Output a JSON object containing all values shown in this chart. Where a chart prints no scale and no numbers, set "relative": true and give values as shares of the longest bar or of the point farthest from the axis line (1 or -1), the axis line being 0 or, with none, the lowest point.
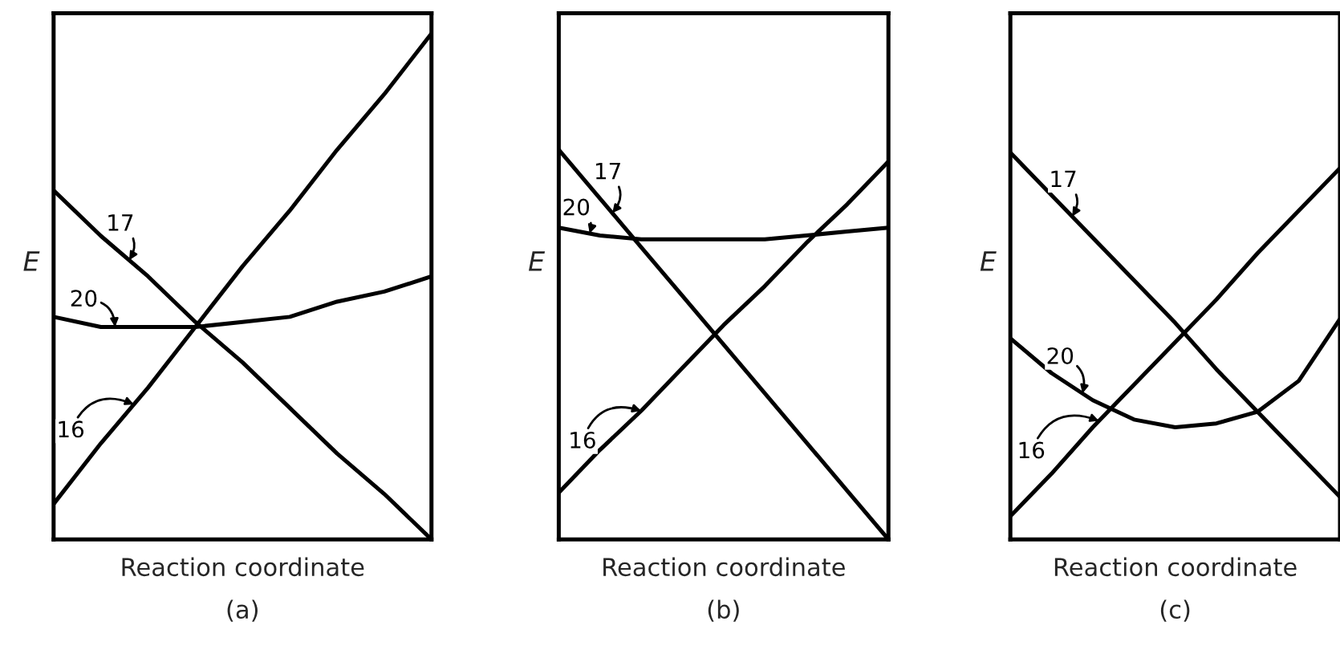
{
  "chart_data": [
    {
      "type": "line",
      "title": "(a)",
      "xlabel": "Reaction coordinate",
      "ylabel": "E",
      "relative": true,
      "categories": [
        null,
        null,
        null,
        null,
        null,
        null,
        null,
        null,
        null
      ],
      "series": [
        {
          "name": "17",
          "color": "#000000",
          "values": [
            0.69,
            0.6,
            0.52,
            0.43,
            0.35,
            0.26,
            0.17,
            0.09,
            0.0
          ]
        },
        {
          "name": "20",
          "color": "#000000",
          "values": [
            0.44,
            0.42,
            0.42,
            0.42,
            0.43,
            0.44,
            0.47,
            0.49,
            0.52
          ]
        },
        {
          "name": "16",
          "color": "#000000",
          "values": [
            0.07,
            0.19,
            0.3,
            0.42,
            0.54,
            0.65,
            0.77,
            0.88,
            1.0
          ]
        }
      ]
    },
    {
      "type": "line",
      "title": "(b)",
      "xlabel": "Reaction coordinate",
      "ylabel": "E",
      "relative": true,
      "categories": [
        null,
        null,
        null,
        null,
        null,
        null,
        null,
        null,
        null
      ],
      "series": [
        {
          "name": "17",
          "color": "#000000",
          "values": [
            1.0,
            0.875,
            0.75,
            0.625,
            0.5,
            0.375,
            0.25,
            0.125,
            0.0
          ]
        },
        {
          "name": "20",
          "color": "#000000",
          "values": [
            0.8,
            0.78,
            0.77,
            0.77,
            0.77,
            0.77,
            0.78,
            0.79,
            0.8
          ]
        },
        {
          "name": "16",
          "color": "#000000",
          "values": [
            0.12,
            0.23,
            0.33,
            0.44,
            0.55,
            0.65,
            0.76,
            0.86,
            0.97
          ]
        }
      ]
    },
    {
      "type": "line",
      "title": "(c)",
      "xlabel": "Reaction coordinate",
      "ylabel": "E",
      "relative": true,
      "categories": [
        null,
        null,
        null,
        null,
        null,
        null,
        null,
        null,
        null
      ],
      "series": [
        {
          "name": "17",
          "color": "#000000",
          "values": [
            1.0,
            0.89,
            0.78,
            0.67,
            0.56,
            0.44,
            0.33,
            0.22,
            0.11
          ]
        },
        {
          "name": "20",
          "color": "#000000",
          "values": [
            0.52,
            0.43,
            0.36,
            0.31,
            0.29,
            0.3,
            0.33,
            0.41,
            0.57
          ]
        },
        {
          "name": "16",
          "color": "#000000",
          "values": [
            0.06,
            0.17,
            0.29,
            0.4,
            0.51,
            0.62,
            0.74,
            0.85,
            0.96
          ]
        }
      ]
    }
  ]
}
